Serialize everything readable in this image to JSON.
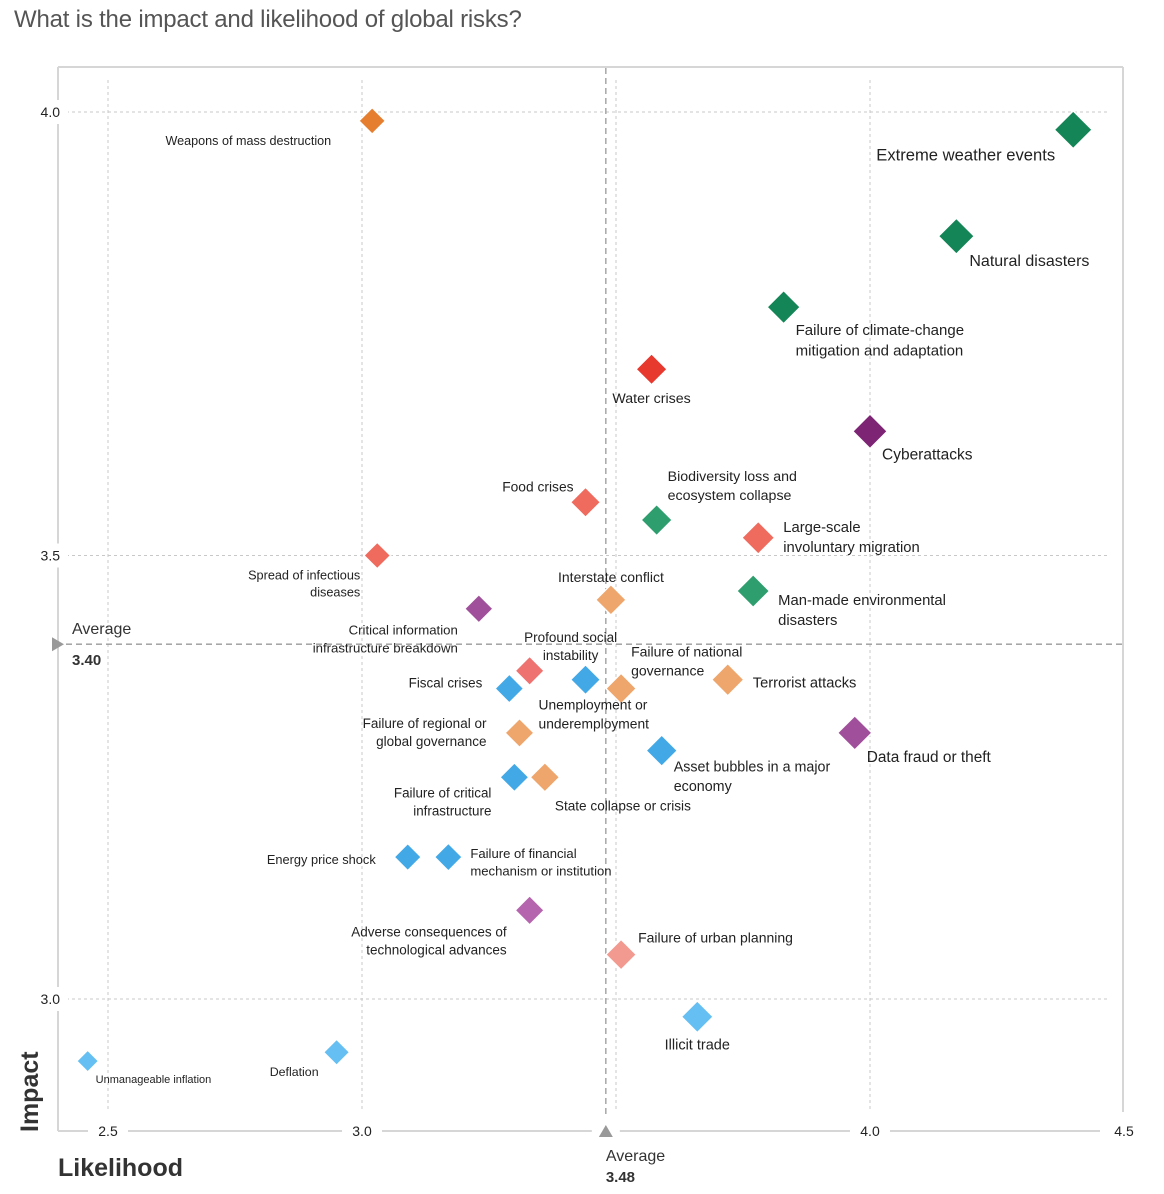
{
  "title": "What is the impact and likelihood of global risks?",
  "chart_data": {
    "type": "scatter",
    "title": "What is the impact and likelihood of global risks?",
    "xlabel": "Likelihood",
    "ylabel": "Impact",
    "xlim": [
      2.4,
      4.5
    ],
    "ylim": [
      2.85,
      4.05
    ],
    "x_ticks": [
      "2.5",
      "3.0",
      "3.5",
      "4.0",
      "4.5"
    ],
    "x_tick_values": [
      2.5,
      3.0,
      3.5,
      4.0,
      4.5
    ],
    "x_tick_labels_shown": [
      "2.5",
      "3.0",
      "",
      "4.0",
      "4.5"
    ],
    "y_ticks": [
      "3.0",
      "3.5",
      "4.0"
    ],
    "y_tick_values": [
      3.0,
      3.5,
      4.0
    ],
    "grid": true,
    "marker": "diamond",
    "x_average": {
      "label": "Average",
      "value": 3.48,
      "value_text": "3.48"
    },
    "y_average": {
      "label": "Average",
      "value": 3.4,
      "value_text": "3.40"
    },
    "points": [
      {
        "name": "Weapons of mass destruction",
        "lines": [
          "Weapons of mass destruction"
        ],
        "x": 3.02,
        "y": 3.99,
        "color": "#e67e30"
      },
      {
        "name": "Extreme weather events",
        "lines": [
          "Extreme weather events"
        ],
        "x": 4.4,
        "y": 3.98,
        "color": "#148556"
      },
      {
        "name": "Natural disasters",
        "lines": [
          "Natural disasters"
        ],
        "x": 4.17,
        "y": 3.86,
        "color": "#148556"
      },
      {
        "name": "Failure of climate-change mitigation and adaptation",
        "lines": [
          "Failure of climate-change",
          "mitigation and adaptation"
        ],
        "x": 3.83,
        "y": 3.78,
        "color": "#148556"
      },
      {
        "name": "Water crises",
        "lines": [
          "Water crises"
        ],
        "x": 3.57,
        "y": 3.71,
        "color": "#e8392f"
      },
      {
        "name": "Cyberattacks",
        "lines": [
          "Cyberattacks"
        ],
        "x": 4.0,
        "y": 3.64,
        "color": "#7d2574"
      },
      {
        "name": "Food crises",
        "lines": [
          "Food crises"
        ],
        "x": 3.44,
        "y": 3.56,
        "color": "#ef6b5e"
      },
      {
        "name": "Biodiversity loss and ecosystem collapse",
        "lines": [
          "Biodiversity loss and",
          "ecosystem collapse"
        ],
        "x": 3.58,
        "y": 3.54,
        "color": "#2e9e6e"
      },
      {
        "name": "Large-scale involuntary migration",
        "lines": [
          "Large-scale",
          "involuntary migration"
        ],
        "x": 3.78,
        "y": 3.52,
        "color": "#ef6b5e"
      },
      {
        "name": "Spread of infectious diseases",
        "lines": [
          "Spread of infectious",
          "diseases"
        ],
        "x": 3.03,
        "y": 3.5,
        "color": "#ef6b5e"
      },
      {
        "name": "Man-made environmental disasters",
        "lines": [
          "Man-made environmental",
          "disasters"
        ],
        "x": 3.77,
        "y": 3.46,
        "color": "#2e9e6e"
      },
      {
        "name": "Interstate conflict",
        "lines": [
          "Interstate conflict"
        ],
        "x": 3.49,
        "y": 3.45,
        "color": "#eea66c"
      },
      {
        "name": "Critical information infrastructure breakdown",
        "lines": [
          "Critical information",
          "infrastructure breakdown"
        ],
        "x": 3.23,
        "y": 3.44,
        "color": "#a0509a"
      },
      {
        "name": "Fiscal crises",
        "lines": [
          "Fiscal crises"
        ],
        "x": 3.29,
        "y": 3.35,
        "color": "#43a9e6"
      },
      {
        "name": "Profound social instability",
        "lines": [
          "Profound social",
          "instability"
        ],
        "x": 3.33,
        "y": 3.37,
        "color": "#ee7370"
      },
      {
        "name": "Unemployment or underemployment",
        "lines": [
          "Unemployment or",
          "underemployment"
        ],
        "x": 3.44,
        "y": 3.36,
        "color": "#43a9e6"
      },
      {
        "name": "Failure of national governance",
        "lines": [
          "Failure of national",
          "governance"
        ],
        "x": 3.51,
        "y": 3.35,
        "color": "#eea66c"
      },
      {
        "name": "Terrorist attacks",
        "lines": [
          "Terrorist attacks"
        ],
        "x": 3.72,
        "y": 3.36,
        "color": "#eea66c"
      },
      {
        "name": "Data fraud or theft",
        "lines": [
          "Data fraud or theft"
        ],
        "x": 3.97,
        "y": 3.3,
        "color": "#a0509a"
      },
      {
        "name": "Failure of regional or global governance",
        "lines": [
          "Failure of regional or",
          "global governance"
        ],
        "x": 3.31,
        "y": 3.3,
        "color": "#eea66c"
      },
      {
        "name": "Asset bubbles in a major economy",
        "lines": [
          "Asset bubbles in a major",
          "economy"
        ],
        "x": 3.59,
        "y": 3.28,
        "color": "#43a9e6"
      },
      {
        "name": "Failure of critical infrastructure",
        "lines": [
          "Failure of critical",
          "infrastructure"
        ],
        "x": 3.3,
        "y": 3.25,
        "color": "#43a9e6"
      },
      {
        "name": "State collapse or crisis",
        "lines": [
          "State collapse or crisis"
        ],
        "x": 3.36,
        "y": 3.25,
        "color": "#eea66c"
      },
      {
        "name": "Energy price shock",
        "lines": [
          "Energy price shock"
        ],
        "x": 3.09,
        "y": 3.16,
        "color": "#43a9e6"
      },
      {
        "name": "Failure of financial mechanism or institution",
        "lines": [
          "Failure of financial",
          "mechanism or institution"
        ],
        "x": 3.17,
        "y": 3.16,
        "color": "#43a9e6"
      },
      {
        "name": "Adverse consequences of technological advances",
        "lines": [
          "Adverse consequences of",
          "technological advances"
        ],
        "x": 3.33,
        "y": 3.1,
        "color": "#b565ad"
      },
      {
        "name": "Failure of urban planning",
        "lines": [
          "Failure of urban planning"
        ],
        "x": 3.51,
        "y": 3.05,
        "color": "#f29a90"
      },
      {
        "name": "Illicit trade",
        "lines": [
          "Illicit trade"
        ],
        "x": 3.66,
        "y": 2.98,
        "color": "#66bff2"
      },
      {
        "name": "Deflation",
        "lines": [
          "Deflation"
        ],
        "x": 2.95,
        "y": 2.94,
        "color": "#66bff2"
      },
      {
        "name": "Unmanageable inflation",
        "lines": [
          "Unmanageable inflation"
        ],
        "x": 2.46,
        "y": 2.93,
        "color": "#66bff2"
      }
    ]
  }
}
